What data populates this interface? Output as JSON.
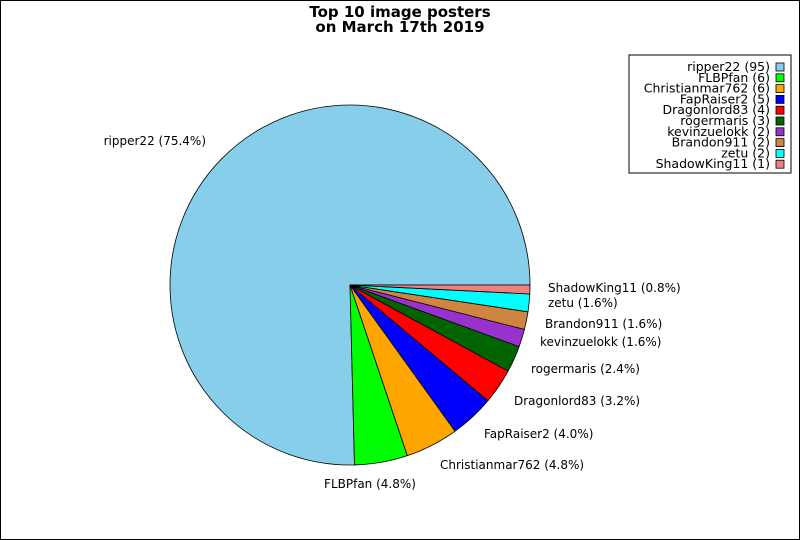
{
  "chart_data": {
    "type": "pie",
    "title_lines": [
      "Top 10 image posters",
      "on March 17th 2019"
    ],
    "slices": [
      {
        "name": "ripper22",
        "value": 95,
        "percent_label": "ripper22 (75.4%)",
        "legend_label": "ripper22 (95)",
        "color": "#87ceeb"
      },
      {
        "name": "FLBPfan",
        "value": 6,
        "percent_label": "FLBPfan (4.8%)",
        "legend_label": "FLBPfan (6)",
        "color": "#00ff00"
      },
      {
        "name": "Christianmar762",
        "value": 6,
        "percent_label": "Christianmar762 (4.8%)",
        "legend_label": "Christianmar762 (6)",
        "color": "#ffa500"
      },
      {
        "name": "FapRaiser2",
        "value": 5,
        "percent_label": "FapRaiser2 (4.0%)",
        "legend_label": "FapRaiser2 (5)",
        "color": "#0000ff"
      },
      {
        "name": "Dragonlord83",
        "value": 4,
        "percent_label": "Dragonlord83 (3.2%)",
        "legend_label": "Dragonlord83 (4)",
        "color": "#ff0000"
      },
      {
        "name": "rogermaris",
        "value": 3,
        "percent_label": "rogermaris (2.4%)",
        "legend_label": "rogermaris (3)",
        "color": "#006400"
      },
      {
        "name": "kevinzuelokk",
        "value": 2,
        "percent_label": "kevinzuelokk (1.6%)",
        "legend_label": "kevinzuelokk (2)",
        "color": "#9932cc"
      },
      {
        "name": "Brandon911",
        "value": 2,
        "percent_label": "Brandon911 (1.6%)",
        "legend_label": "Brandon911 (2)",
        "color": "#cd853f"
      },
      {
        "name": "zetu",
        "value": 2,
        "percent_label": "zetu (1.6%)",
        "legend_label": "zetu (2)",
        "color": "#00ffff"
      },
      {
        "name": "ShadowKing11",
        "value": 1,
        "percent_label": "ShadowKing11 (0.8%)",
        "legend_label": "ShadowKing11 (1)",
        "color": "#f08080"
      }
    ],
    "legend_position": "top-right"
  }
}
